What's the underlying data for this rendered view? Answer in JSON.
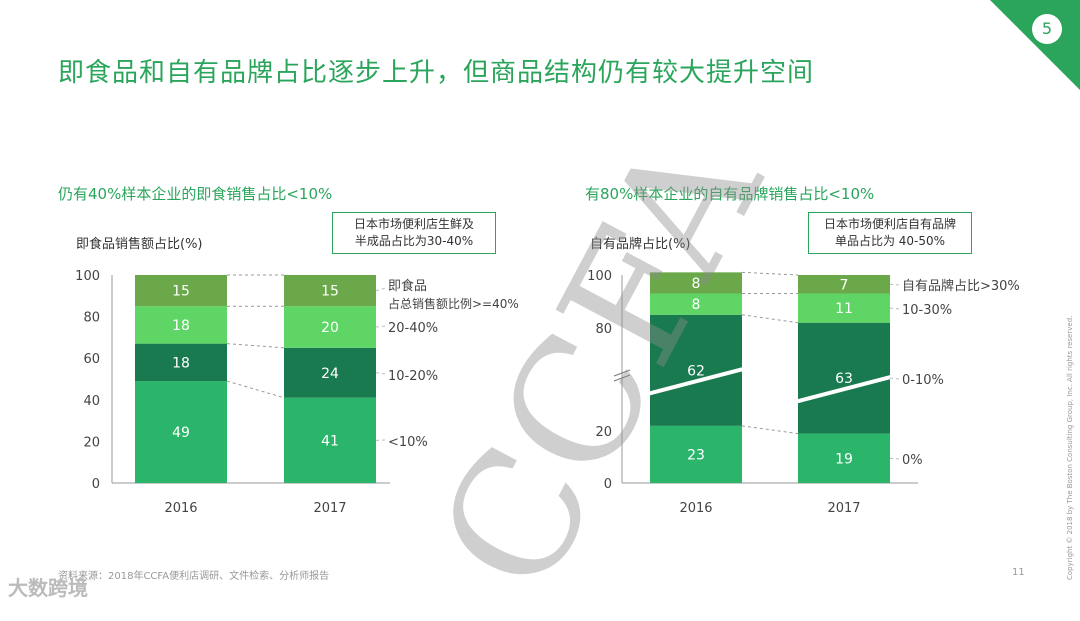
{
  "page": {
    "page_badge": "5",
    "title": "即食品和自有品牌占比逐步上升，但商品结构仍有较大提升空间",
    "footnote": "资料来源：2018年CCFA便利店调研、文件检索、分析师报告",
    "page_number": "11",
    "copyright": "Copyright © 2018 by The Boston Consulting Group, Inc. All rights reserved.",
    "watermark": "CCFA",
    "logo_text": "大数跨境"
  },
  "colors": {
    "accent": "#2aa55b",
    "seg_lowest": "#2bb56a",
    "seg_second": "#1a7a4f",
    "seg_third": "#5ed565",
    "seg_top": "#6aa84a"
  },
  "chart_data": [
    {
      "type": "bar",
      "stacked": true,
      "subtitle": "仍有40%样本企业的即食销售占比<10%",
      "ylabel": "即食品销售额占比(%)",
      "callout": [
        "日本市场便利店生鲜及",
        "半成品占比为30-40%"
      ],
      "categories": [
        "2016",
        "2017"
      ],
      "ylim": [
        0,
        100
      ],
      "yticks": [
        "0",
        "20",
        "40",
        "60",
        "80",
        "100"
      ],
      "series": [
        {
          "name": "<10%",
          "values": [
            49,
            41
          ]
        },
        {
          "name": "10-20%",
          "values": [
            18,
            24
          ]
        },
        {
          "name": "20-40%",
          "values": [
            18,
            20
          ]
        },
        {
          "name": "即食品 占总销售额比例>=40%",
          "values": [
            15,
            15
          ]
        }
      ],
      "legend_labels": [
        "<10%",
        "10-20%",
        "20-40%",
        "即食品",
        "占总销售额比例>=40%"
      ]
    },
    {
      "type": "bar",
      "stacked": true,
      "subtitle": "有80%样本企业的自有品牌销售占比<10%",
      "ylabel": "自有品牌占比(%)",
      "callout": [
        "日本市场便利店自有品牌",
        "单品占比为 40-50%"
      ],
      "categories": [
        "2016",
        "2017"
      ],
      "ylim": [
        0,
        100
      ],
      "axis_break": true,
      "yticks": [
        "0",
        "20",
        "80",
        "100"
      ],
      "series": [
        {
          "name": "0%",
          "values": [
            23,
            19
          ]
        },
        {
          "name": "0-10%",
          "values": [
            62,
            63
          ]
        },
        {
          "name": "10-30%",
          "values": [
            8,
            11
          ]
        },
        {
          "name": "自有品牌占比>30%",
          "values": [
            8,
            7
          ]
        }
      ],
      "legend_labels": [
        "0%",
        "0-10%",
        "10-30%",
        "自有品牌占比>30%"
      ]
    }
  ]
}
